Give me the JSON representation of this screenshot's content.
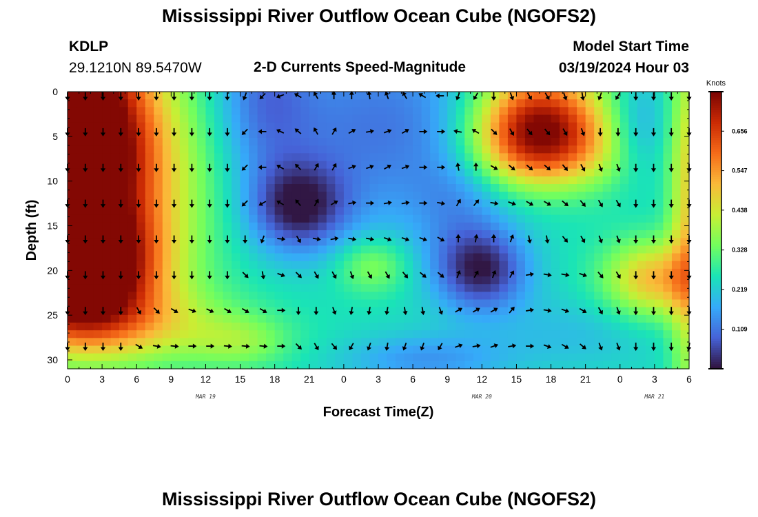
{
  "header": {
    "title": "Mississippi River Outflow Ocean Cube (NGOFS2)",
    "station": "KDLP",
    "coords": "29.1210N  89.5470W",
    "subtitle": "2-D Currents Speed-Magnitude",
    "model_label": "Model Start Time",
    "model_time": "03/19/2024 Hour 03"
  },
  "footer": {
    "title": "Mississippi River Outflow Ocean Cube (NGOFS2)"
  },
  "chart_data": {
    "type": "heatmap",
    "title": "2-D Currents Speed-Magnitude",
    "xlabel": "Forecast Time(Z)",
    "ylabel": "Depth (ft)",
    "x_tick_labels": [
      "0",
      "3",
      "6",
      "9",
      "12",
      "15",
      "18",
      "21",
      "0",
      "3",
      "6",
      "9",
      "12",
      "15",
      "18",
      "21",
      "0",
      "3",
      "6"
    ],
    "x_hours": [
      0,
      3,
      6,
      9,
      12,
      15,
      18,
      21,
      24,
      27,
      30,
      33,
      36,
      39,
      42,
      45,
      48,
      51,
      54
    ],
    "date_labels": [
      {
        "text": "MAR 19",
        "hour": 12
      },
      {
        "text": "MAR 20",
        "hour": 36
      },
      {
        "text": "MAR 21",
        "hour": 51
      }
    ],
    "y_ticks": [
      0,
      5,
      10,
      15,
      20,
      25,
      30
    ],
    "ylim": [
      31,
      0
    ],
    "xlim": [
      0,
      54
    ],
    "colorbar": {
      "title": "Knots",
      "ticks": [
        "0.656",
        "0.547",
        "0.438",
        "0.328",
        "0.219",
        "0.109"
      ],
      "tick_values": [
        0.656,
        0.547,
        0.438,
        0.328,
        0.219,
        0.109
      ],
      "range": [
        0,
        0.765
      ],
      "colors": [
        "#30123b",
        "#4662d7",
        "#36aaf9",
        "#1ae4b6",
        "#72fe5e",
        "#c8ef34",
        "#faba39",
        "#f66b19",
        "#ca2a04",
        "#7a0403"
      ]
    },
    "speed_field": {
      "background": 0.25,
      "features": [
        {
          "cx": -1,
          "cy": 1,
          "sx": 5,
          "sy": 8,
          "amp": 0.5
        },
        {
          "cx": 1,
          "cy": 10,
          "sx": 6,
          "sy": 9,
          "amp": 0.48
        },
        {
          "cx": 1,
          "cy": 20,
          "sx": 4.5,
          "sy": 4.5,
          "amp": 0.52
        },
        {
          "cx": 4,
          "cy": 26,
          "sx": 7,
          "sy": 3,
          "amp": 0.18
        },
        {
          "cx": 15,
          "cy": 28,
          "sx": 3,
          "sy": 2,
          "amp": 0.1
        },
        {
          "cx": 17,
          "cy": 1,
          "sx": 3,
          "sy": 6,
          "amp": -0.12
        },
        {
          "cx": 20,
          "cy": 13,
          "sx": 3,
          "sy": 3.5,
          "amp": -0.22
        },
        {
          "cx": 27,
          "cy": 4,
          "sx": 7,
          "sy": 8,
          "amp": -0.14
        },
        {
          "cx": 26.5,
          "cy": 19.5,
          "sx": 2.2,
          "sy": 2.2,
          "amp": 0.12
        },
        {
          "cx": 34,
          "cy": 11,
          "sx": 3,
          "sy": 6,
          "amp": -0.08
        },
        {
          "cx": 36,
          "cy": 20,
          "sx": 2.8,
          "sy": 3.2,
          "amp": -0.22
        },
        {
          "cx": 31,
          "cy": 30,
          "sx": 5,
          "sy": 2,
          "amp": -0.1
        },
        {
          "cx": 41,
          "cy": 3,
          "sx": 4,
          "sy": 4,
          "amp": 0.44
        },
        {
          "cx": 41,
          "cy": 7,
          "sx": 5,
          "sy": 3,
          "amp": 0.2
        },
        {
          "cx": 49.5,
          "cy": 4,
          "sx": 1.8,
          "sy": 4,
          "amp": -0.1
        },
        {
          "cx": 51,
          "cy": 21,
          "sx": 3,
          "sy": 3,
          "amp": 0.26
        },
        {
          "cx": 54,
          "cy": 14,
          "sx": 1.2,
          "sy": 16,
          "amp": 0.22
        },
        {
          "cx": 44,
          "cy": 27,
          "sx": 6,
          "sy": 3,
          "amp": -0.05
        }
      ]
    },
    "arrow_depths": [
      0,
      4,
      8,
      12,
      16,
      20,
      24,
      28
    ],
    "arrows_deg": [
      [
        180,
        180,
        180,
        180,
        180,
        180,
        180,
        180
      ],
      [
        180,
        180,
        180,
        180,
        180,
        180,
        180,
        180
      ],
      [
        180,
        180,
        180,
        180,
        180,
        180,
        180,
        180
      ],
      [
        180,
        180,
        180,
        180,
        180,
        180,
        180,
        180
      ],
      [
        180,
        180,
        180,
        180,
        180,
        180,
        150,
        120
      ],
      [
        180,
        180,
        180,
        180,
        180,
        180,
        135,
        100
      ],
      [
        180,
        180,
        180,
        180,
        180,
        180,
        120,
        95
      ],
      [
        180,
        180,
        180,
        180,
        180,
        180,
        110,
        90
      ],
      [
        180,
        180,
        180,
        180,
        180,
        180,
        115,
        90
      ],
      [
        180,
        180,
        180,
        180,
        180,
        180,
        120,
        95
      ],
      [
        200,
        225,
        225,
        225,
        180,
        135,
        120,
        95
      ],
      [
        225,
        270,
        270,
        240,
        200,
        170,
        120,
        95
      ],
      [
        250,
        295,
        300,
        300,
        95,
        110,
        90,
        90
      ],
      [
        300,
        310,
        315,
        320,
        150,
        135,
        180,
        135
      ],
      [
        330,
        330,
        30,
        30,
        100,
        150,
        180,
        150
      ],
      [
        360,
        30,
        30,
        60,
        80,
        150,
        160,
        140
      ],
      [
        360,
        60,
        70,
        80,
        100,
        160,
        190,
        210
      ],
      [
        350,
        80,
        70,
        90,
        100,
        150,
        190,
        200
      ],
      [
        340,
        70,
        60,
        80,
        110,
        150,
        190,
        190
      ],
      [
        330,
        60,
        70,
        80,
        110,
        140,
        170,
        200
      ],
      [
        300,
        90,
        90,
        90,
        110,
        130,
        170,
        200
      ],
      [
        270,
        90,
        90,
        100,
        120,
        130,
        160,
        210
      ],
      [
        200,
        280,
        350,
        30,
        0,
        20,
        60,
        70
      ],
      [
        210,
        300,
        360,
        40,
        10,
        30,
        60,
        80
      ],
      [
        180,
        135,
        120,
        100,
        0,
        20,
        60,
        70
      ],
      [
        160,
        150,
        130,
        110,
        20,
        30,
        40,
        80
      ],
      [
        150,
        140,
        130,
        120,
        170,
        80,
        80,
        90
      ],
      [
        150,
        140,
        130,
        120,
        170,
        100,
        100,
        110
      ],
      [
        160,
        150,
        140,
        130,
        140,
        100,
        110,
        120
      ],
      [
        170,
        160,
        150,
        140,
        150,
        110,
        120,
        130
      ],
      [
        200,
        180,
        160,
        150,
        160,
        140,
        150,
        160
      ],
      [
        210,
        180,
        160,
        150,
        160,
        150,
        160,
        160
      ],
      [
        180,
        180,
        180,
        180,
        180,
        180,
        180,
        180
      ],
      [
        180,
        180,
        180,
        180,
        180,
        180,
        180,
        180
      ],
      [
        180,
        180,
        180,
        180,
        180,
        180,
        180,
        180
      ],
      [
        180,
        180,
        180,
        180,
        180,
        180,
        180,
        190
      ]
    ]
  }
}
